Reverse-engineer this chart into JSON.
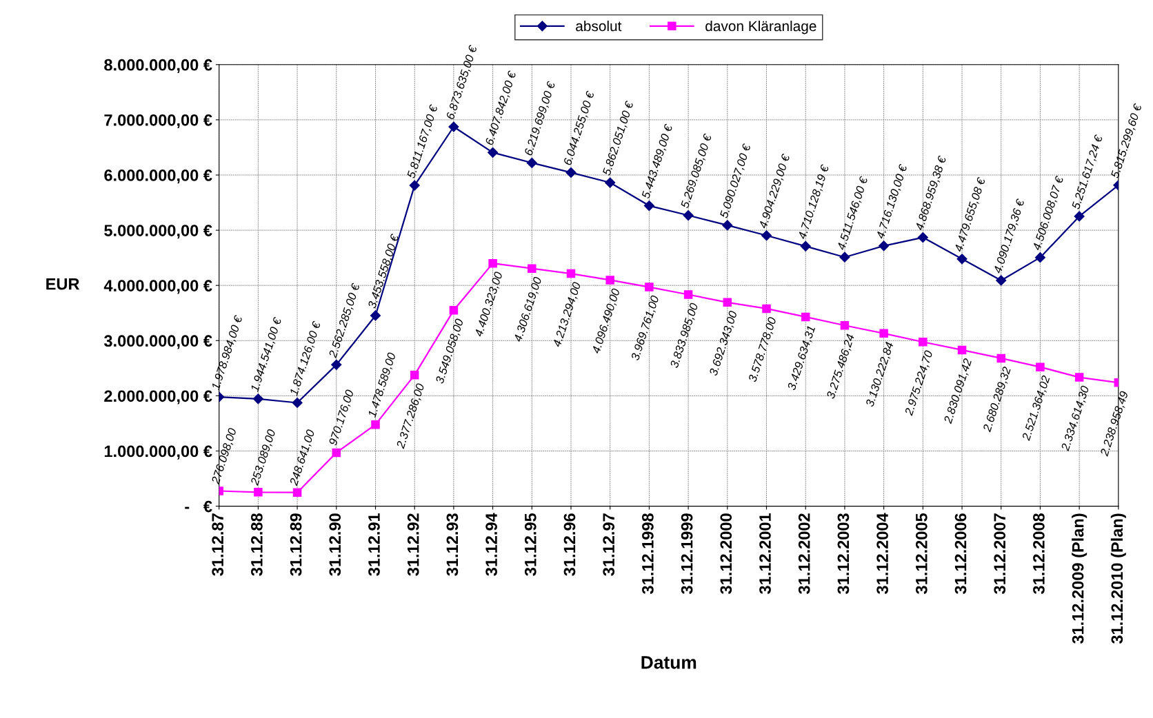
{
  "chart_data": {
    "type": "line",
    "xlabel": "Datum",
    "ylabel": "EUR",
    "categories": [
      "31.12.87",
      "31.12.88",
      "31.12.89",
      "31.12.90",
      "31.12.91",
      "31.12.92",
      "31.12.93",
      "31.12.94",
      "31.12.95",
      "31.12.96",
      "31.12.97",
      "31.12.1998",
      "31.12.1999",
      "31.12.2000",
      "31.12.2001",
      "31.12.2002",
      "31.12.2003",
      "31.12.2004",
      "31.12.2005",
      "31.12.2006",
      "31.12.2007",
      "31.12.2008",
      "31.12.2009 (Plan)",
      "31.12.2010 (Plan)"
    ],
    "series": [
      {
        "name": "absolut",
        "color": "#000080",
        "marker": "diamond",
        "values": [
          1978984.0,
          1944541.0,
          1874126.0,
          2562285.0,
          3453558.0,
          5811167.0,
          6873635.0,
          6407842.0,
          6219699.0,
          6044255.0,
          5862051.0,
          5443489.0,
          5269085.0,
          5090027.0,
          4904229.0,
          4710128.19,
          4511546.0,
          4716130.0,
          4868959.38,
          4479655.08,
          4090179.36,
          4506008.07,
          5251617.24,
          5815299.6
        ],
        "value_labels": [
          "1.978.984,00 €",
          "1.944.541,00 €",
          "1.874.126,00 €",
          "2.562.285,00 €",
          "3.453.558,00 €",
          "5.811.167,00 €",
          "6.873.635,00 €",
          "6.407.842,00 €",
          "6.219.699,00 €",
          "6.044.255,00 €",
          "5.862.051,00 €",
          "5.443.489,00 €",
          "5.269.085,00 €",
          "5.090.027,00 €",
          "4.904.229,00 €",
          "4.710.128,19 €",
          "4.511.546,00 €",
          "4.716.130,00 €",
          "4.868.959,38 €",
          "4.479.655,08 €",
          "4.090.179,36 €",
          "4.506.008,07 €",
          "5.251.617,24 €",
          "5.815.299,60 €"
        ]
      },
      {
        "name": "davon Kläranlage",
        "color": "#ff00ff",
        "marker": "square",
        "values": [
          276098.0,
          253089.0,
          248641.0,
          970176.0,
          1478589.0,
          2377286.0,
          3549058.0,
          4400323.0,
          4306619.0,
          4213294.0,
          4096490.0,
          3969761.0,
          3833985.0,
          3692343.0,
          3578778.0,
          3429634.31,
          3275486.24,
          3130222.84,
          2975224.7,
          2830091.42,
          2680289.32,
          2521364.02,
          2334614.3,
          2238958.49
        ],
        "value_labels": [
          "276.098,00",
          "253.089,00",
          "248.641,00",
          "970.176,00",
          "1.478.589,00",
          "2.377.286,00",
          "3.549.058,00",
          "4.400.323,00",
          "4.306.619,00",
          "4.213.294,00",
          "4.096.490,00",
          "3.969.761,00",
          "3.833.985,00",
          "3.692.343,00",
          "3.578.778,00",
          "3.429.634,31",
          "3.275.486,24",
          "3.130.222,84",
          "2.975.224,70",
          "2.830.091,42",
          "2.680.289,32",
          "2.521.364,02",
          "2.334.614,30",
          "2.238.958,49"
        ]
      }
    ],
    "ylim": [
      0,
      8000000
    ],
    "yticks": [
      {
        "value": 0,
        "label": "-   €"
      },
      {
        "value": 1000000,
        "label": "1.000.000,00 €"
      },
      {
        "value": 2000000,
        "label": "2.000.000,00 €"
      },
      {
        "value": 3000000,
        "label": "3.000.000,00 €"
      },
      {
        "value": 4000000,
        "label": "4.000.000,00 €"
      },
      {
        "value": 5000000,
        "label": "5.000.000,00 €"
      },
      {
        "value": 6000000,
        "label": "6.000.000,00 €"
      },
      {
        "value": 7000000,
        "label": "7.000.000,00 €"
      },
      {
        "value": 8000000,
        "label": "8.000.000,00 €"
      }
    ],
    "grid": true,
    "legend": "top",
    "line_style": "solid"
  }
}
